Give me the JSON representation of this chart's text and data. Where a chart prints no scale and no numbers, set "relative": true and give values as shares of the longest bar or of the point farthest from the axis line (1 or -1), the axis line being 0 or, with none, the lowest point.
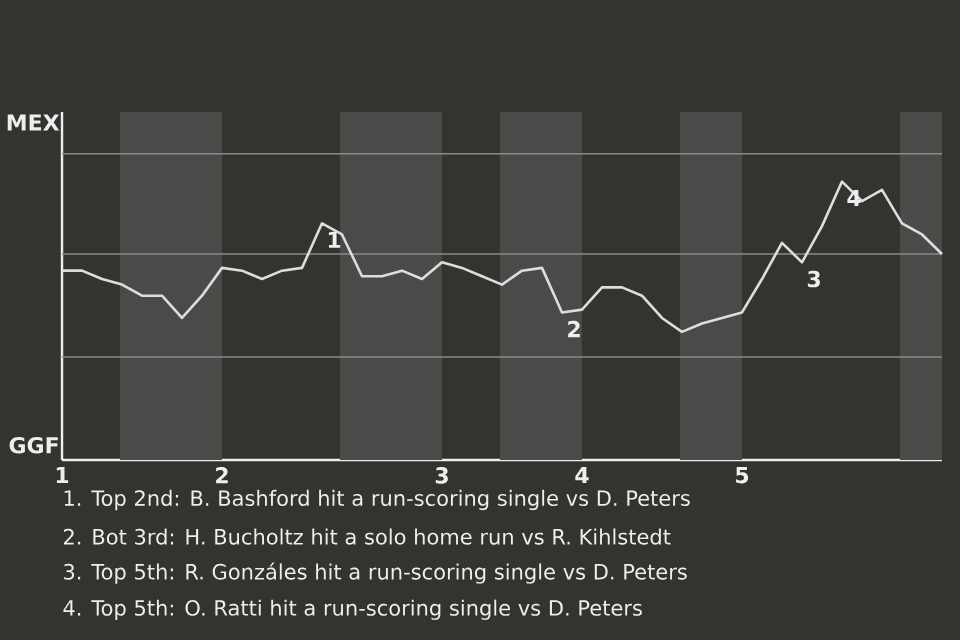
{
  "chart_data": {
    "type": "line",
    "relative": true,
    "categories": [
      "1",
      null,
      null,
      null,
      null,
      null,
      null,
      null,
      "2",
      null,
      null,
      null,
      null,
      null,
      null,
      null,
      null,
      null,
      null,
      "3",
      null,
      null,
      null,
      null,
      null,
      null,
      "4",
      null,
      null,
      null,
      null,
      null,
      null,
      null,
      "5",
      null,
      null,
      null,
      null,
      null,
      null,
      null,
      null,
      null,
      null
    ],
    "values": [
      0.68,
      0.68,
      0.65,
      0.63,
      0.59,
      0.59,
      0.51,
      0.59,
      0.69,
      0.68,
      0.65,
      0.68,
      0.69,
      0.85,
      0.81,
      0.66,
      0.66,
      0.68,
      0.65,
      0.71,
      0.69,
      0.66,
      0.63,
      0.68,
      0.69,
      0.53,
      0.54,
      0.62,
      0.62,
      0.59,
      0.51,
      0.46,
      0.49,
      0.51,
      0.53,
      0.65,
      0.78,
      0.71,
      0.84,
      1,
      0.93,
      0.97,
      0.85,
      0.81,
      0.74
    ],
    "color": "#dddddd",
    "ref_lines": [
      {
        "axis": "y",
        "value": 0.37,
        "color": "#8a8a88"
      },
      {
        "axis": "y",
        "value": 0.74,
        "color": "#8a8a88"
      },
      {
        "axis": "y",
        "value": 1.1,
        "color": "#8a8a88"
      }
    ],
    "annotations": [
      {
        "text": "1",
        "y": 0.85
      },
      {
        "text": "2",
        "y": 0.53
      },
      {
        "text": "3",
        "y": 0.71
      },
      {
        "text": "4",
        "y": 1
      },
      "MEX",
      "GGF",
      "1. Top 2nd: B. Bashford hit a run-scoring single vs D. Peters",
      "2. Bot 3rd: H. Bucholtz hit a solo home run vs R. Kihlstedt",
      "3. Top 5th: R. Gonzáles hit a run-scoring single vs D. Peters",
      "4. Top 5th: O. Ratti hit a run-scoring single vs D. Peters"
    ]
  }
}
